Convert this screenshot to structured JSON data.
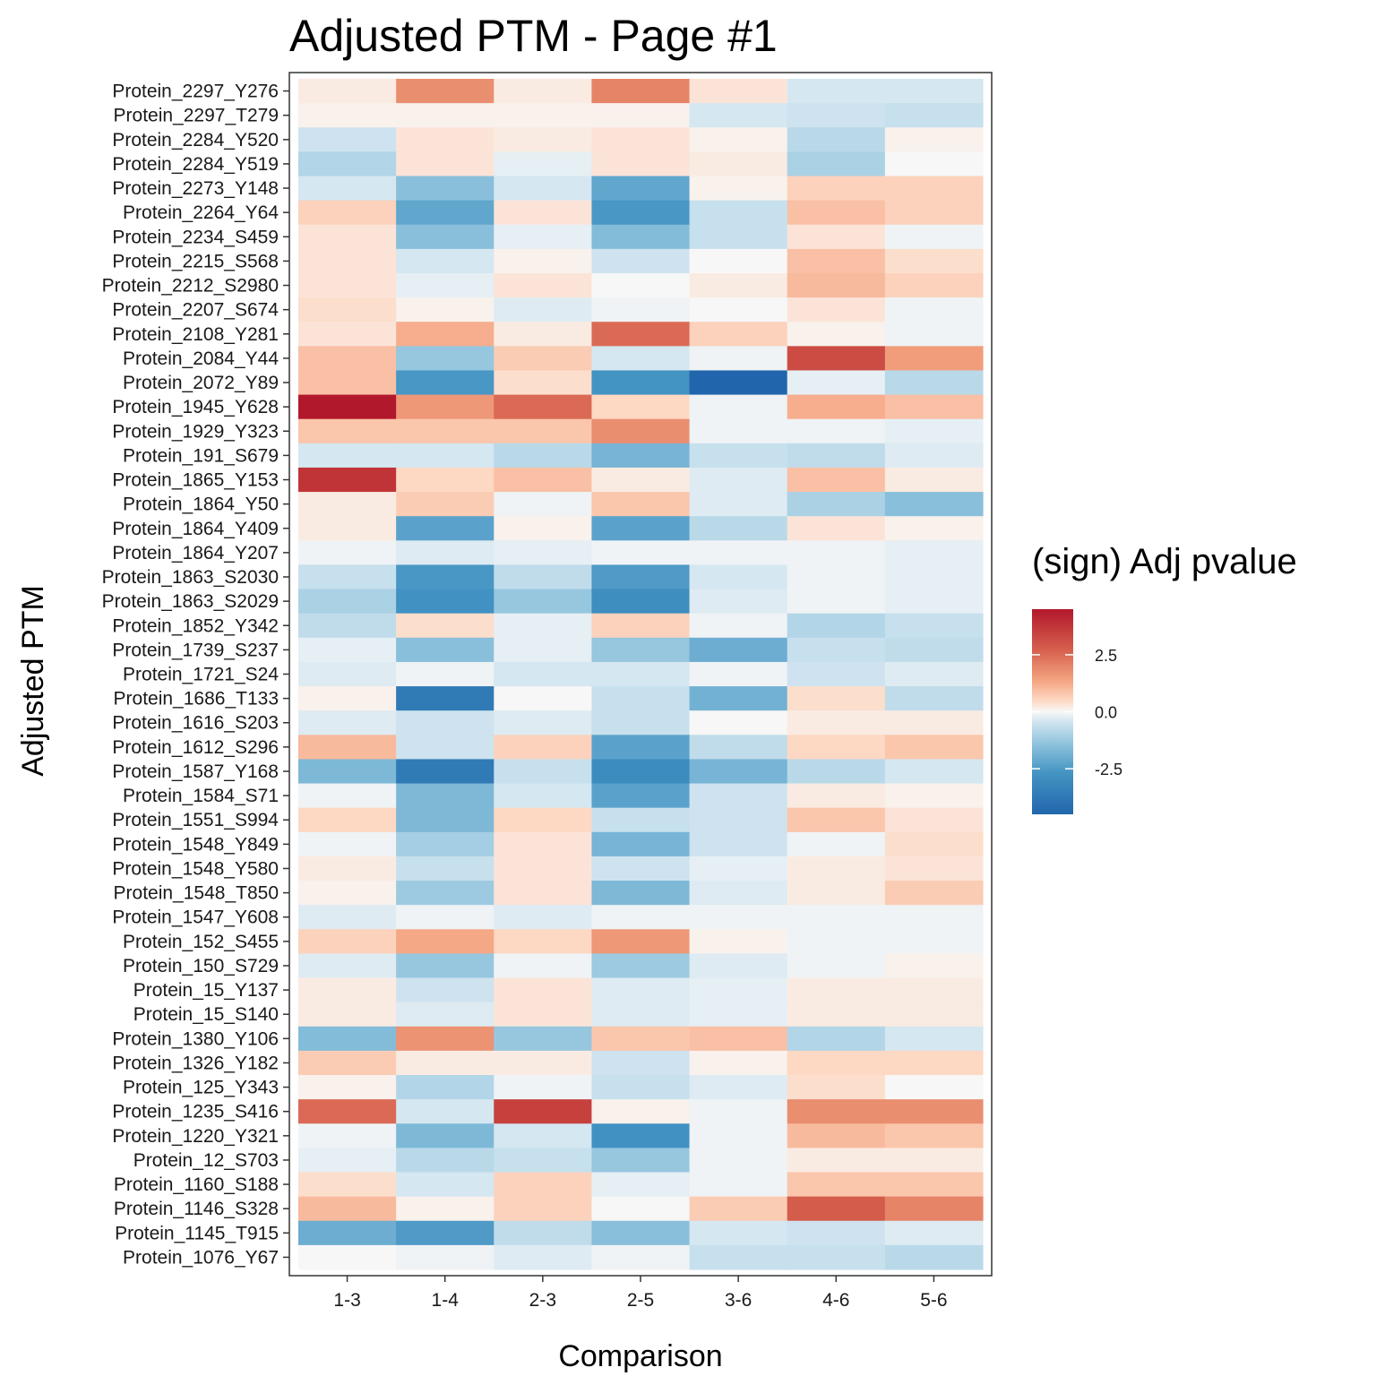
{
  "chart_data": {
    "type": "heatmap",
    "title": "Adjusted PTM - Page #1",
    "xlabel": "Comparison",
    "ylabel": "Adjusted PTM",
    "legend_title": "(sign) Adj pvalue",
    "legend_position": "right",
    "legend_ticks": [
      "2.5",
      "0.0",
      "-2.5"
    ],
    "legend_tick_values": [
      2.5,
      0.0,
      -2.5
    ],
    "color_range": [
      -4.5,
      4.5
    ],
    "colors": {
      "low": "#2166ac",
      "mid": "#f7f7f7",
      "high": "#b2182b"
    },
    "grid": false,
    "columns": [
      "1-3",
      "1-4",
      "2-3",
      "2-5",
      "3-6",
      "4-6",
      "5-6"
    ],
    "rows": [
      "Protein_2297_Y276",
      "Protein_2297_T279",
      "Protein_2284_Y520",
      "Protein_2284_Y519",
      "Protein_2273_Y148",
      "Protein_2264_Y64",
      "Protein_2234_S459",
      "Protein_2215_S568",
      "Protein_2212_S2980",
      "Protein_2207_S674",
      "Protein_2108_Y281",
      "Protein_2084_Y44",
      "Protein_2072_Y89",
      "Protein_1945_Y628",
      "Protein_1929_Y323",
      "Protein_191_S679",
      "Protein_1865_Y153",
      "Protein_1864_Y50",
      "Protein_1864_Y409",
      "Protein_1864_Y207",
      "Protein_1863_S2030",
      "Protein_1863_S2029",
      "Protein_1852_Y342",
      "Protein_1739_S237",
      "Protein_1721_S24",
      "Protein_1686_T133",
      "Protein_1616_S203",
      "Protein_1612_S296",
      "Protein_1587_Y168",
      "Protein_1584_S71",
      "Protein_1551_S994",
      "Protein_1548_Y849",
      "Protein_1548_Y580",
      "Protein_1548_T850",
      "Protein_1547_Y608",
      "Protein_152_S455",
      "Protein_150_S729",
      "Protein_15_Y137",
      "Protein_15_S140",
      "Protein_1380_Y106",
      "Protein_1326_Y182",
      "Protein_125_Y343",
      "Protein_1235_S416",
      "Protein_1220_Y321",
      "Protein_12_S703",
      "Protein_1160_S188",
      "Protein_1146_S328",
      "Protein_1145_T915",
      "Protein_1076_Y67"
    ],
    "values": [
      [
        0.2,
        1.8,
        0.2,
        2.0,
        0.3,
        -0.4,
        -0.4
      ],
      [
        0.1,
        0.1,
        0.1,
        0.1,
        -0.4,
        -0.5,
        -0.6
      ],
      [
        -0.5,
        0.3,
        0.2,
        0.3,
        0.1,
        -0.8,
        0.1
      ],
      [
        -0.9,
        0.3,
        -0.2,
        0.3,
        0.2,
        -1.0,
        0.0
      ],
      [
        -0.4,
        -1.5,
        -0.4,
        -2.2,
        0.1,
        0.6,
        0.6
      ],
      [
        0.6,
        -2.2,
        0.3,
        -2.6,
        -0.6,
        0.9,
        0.6
      ],
      [
        0.3,
        -1.5,
        -0.2,
        -1.6,
        -0.6,
        0.3,
        -0.1
      ],
      [
        0.3,
        -0.4,
        0.1,
        -0.5,
        0.0,
        0.9,
        0.4
      ],
      [
        0.3,
        -0.2,
        0.3,
        0.0,
        0.2,
        1.0,
        0.6
      ],
      [
        0.4,
        0.1,
        -0.3,
        -0.1,
        0.0,
        0.3,
        -0.1
      ],
      [
        0.3,
        1.2,
        0.2,
        2.5,
        0.6,
        0.1,
        -0.1
      ],
      [
        0.9,
        -1.3,
        0.7,
        -0.4,
        -0.1,
        3.2,
        1.5
      ],
      [
        0.9,
        -2.6,
        0.4,
        -2.7,
        -4.5,
        -0.2,
        -0.8
      ],
      [
        4.5,
        1.6,
        2.5,
        0.5,
        -0.1,
        1.2,
        0.9
      ],
      [
        0.8,
        0.8,
        0.8,
        1.8,
        -0.1,
        -0.1,
        -0.2
      ],
      [
        -0.4,
        -0.4,
        -0.8,
        -1.8,
        -0.6,
        -0.7,
        -0.3
      ],
      [
        3.8,
        0.5,
        0.9,
        0.2,
        -0.3,
        0.9,
        0.2
      ],
      [
        0.2,
        0.7,
        -0.1,
        0.8,
        -0.3,
        -1.0,
        -1.5
      ],
      [
        0.2,
        -2.3,
        0.1,
        -2.3,
        -0.8,
        0.3,
        0.1
      ],
      [
        -0.1,
        -0.3,
        -0.2,
        -0.1,
        -0.1,
        -0.1,
        -0.2
      ],
      [
        -0.6,
        -2.6,
        -0.7,
        -2.5,
        -0.4,
        -0.1,
        -0.2
      ],
      [
        -1.0,
        -2.8,
        -1.3,
        -2.9,
        -0.3,
        -0.1,
        -0.2
      ],
      [
        -0.7,
        0.4,
        -0.2,
        0.6,
        -0.1,
        -0.9,
        -0.6
      ],
      [
        -0.2,
        -1.5,
        -0.2,
        -1.3,
        -2.0,
        -0.6,
        -0.7
      ],
      [
        -0.3,
        -0.1,
        -0.4,
        -0.4,
        -0.1,
        -0.5,
        -0.3
      ],
      [
        0.1,
        -3.7,
        0.0,
        -0.6,
        -1.9,
        0.4,
        -0.7
      ],
      [
        -0.3,
        -0.5,
        -0.3,
        -0.6,
        0.0,
        0.2,
        0.2
      ],
      [
        1.0,
        -0.5,
        0.6,
        -2.3,
        -0.7,
        0.5,
        0.8
      ],
      [
        -1.7,
        -3.7,
        -0.6,
        -3.0,
        -1.8,
        -0.8,
        -0.4
      ],
      [
        -0.1,
        -1.7,
        -0.4,
        -2.3,
        -0.5,
        0.2,
        0.1
      ],
      [
        0.5,
        -1.7,
        0.5,
        -0.6,
        -0.5,
        0.8,
        0.3
      ],
      [
        -0.1,
        -1.1,
        0.3,
        -1.8,
        -0.5,
        -0.1,
        0.4
      ],
      [
        0.2,
        -0.6,
        0.3,
        -0.5,
        -0.2,
        0.2,
        0.3
      ],
      [
        0.1,
        -1.2,
        0.3,
        -1.7,
        -0.3,
        0.2,
        0.7
      ],
      [
        -0.3,
        -0.1,
        -0.3,
        -0.1,
        -0.1,
        -0.1,
        -0.1
      ],
      [
        0.6,
        1.3,
        0.5,
        1.6,
        0.1,
        -0.1,
        -0.1
      ],
      [
        -0.3,
        -1.3,
        -0.1,
        -1.2,
        -0.3,
        -0.1,
        0.1
      ],
      [
        0.2,
        -0.5,
        0.3,
        -0.3,
        -0.2,
        0.2,
        0.2
      ],
      [
        0.2,
        -0.3,
        0.3,
        -0.3,
        -0.2,
        0.2,
        0.2
      ],
      [
        -1.6,
        1.7,
        -1.3,
        0.8,
        0.9,
        -0.9,
        -0.4
      ],
      [
        0.7,
        0.2,
        0.2,
        -0.5,
        0.1,
        0.5,
        0.5
      ],
      [
        0.1,
        -0.9,
        -0.1,
        -0.6,
        -0.3,
        0.4,
        0.0
      ],
      [
        2.5,
        -0.4,
        3.5,
        0.1,
        -0.1,
        1.8,
        1.8
      ],
      [
        -0.1,
        -1.7,
        -0.4,
        -2.8,
        -0.1,
        1.0,
        0.8
      ],
      [
        -0.2,
        -0.8,
        -0.6,
        -1.3,
        -0.1,
        0.2,
        0.2
      ],
      [
        0.4,
        -0.4,
        0.6,
        -0.2,
        -0.1,
        0.8,
        0.8
      ],
      [
        1.0,
        0.1,
        0.6,
        0.0,
        0.7,
        2.8,
        2.0
      ],
      [
        -2.0,
        -2.5,
        -0.7,
        -1.5,
        -0.4,
        -0.5,
        -0.3
      ],
      [
        0.0,
        -0.1,
        -0.3,
        -0.1,
        -0.6,
        -0.6,
        -0.8
      ]
    ]
  }
}
